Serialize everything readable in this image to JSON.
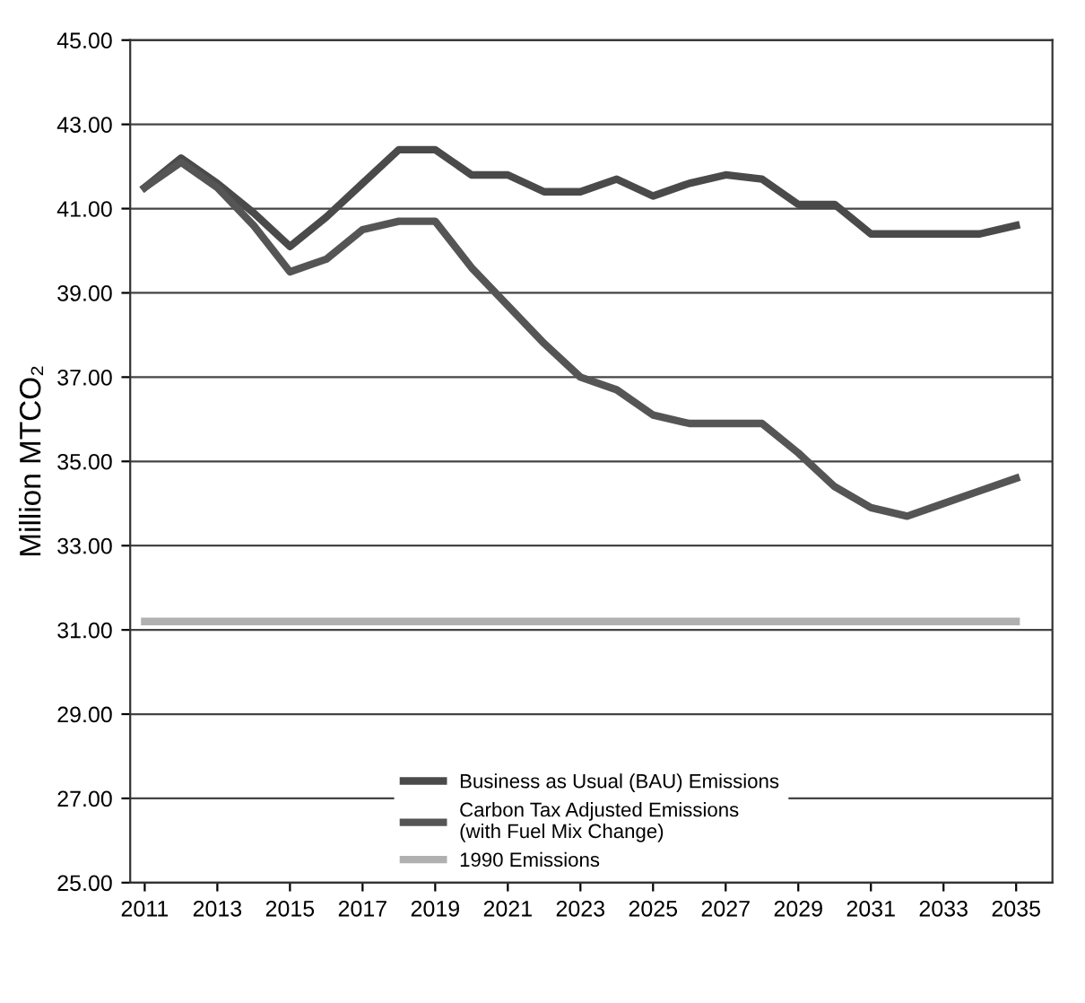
{
  "chart_data": {
    "type": "line",
    "ylabel": "Million MTCO₂",
    "x": [
      2011,
      2012,
      2013,
      2014,
      2015,
      2016,
      2017,
      2018,
      2019,
      2020,
      2021,
      2022,
      2023,
      2024,
      2025,
      2026,
      2027,
      2028,
      2029,
      2030,
      2031,
      2032,
      2033,
      2034,
      2035
    ],
    "series": [
      {
        "name": "Business as Usual (BAU) Emissions",
        "color": "#4a4a4a",
        "values": [
          41.5,
          42.2,
          41.6,
          40.9,
          40.1,
          40.8,
          41.6,
          42.4,
          42.4,
          41.8,
          41.8,
          41.4,
          41.4,
          41.7,
          41.3,
          41.6,
          41.8,
          41.7,
          41.1,
          41.1,
          40.4,
          40.4,
          40.4,
          40.4,
          40.6
        ]
      },
      {
        "name": "Carbon Tax Adjusted Emissions\n(with Fuel Mix Change)",
        "color": "#555555",
        "values": [
          41.5,
          42.1,
          41.5,
          40.6,
          39.5,
          39.8,
          40.5,
          40.7,
          40.7,
          39.6,
          38.7,
          37.8,
          37.0,
          36.7,
          36.1,
          35.9,
          35.9,
          35.9,
          35.2,
          34.4,
          33.9,
          33.7,
          34.0,
          34.3,
          34.6
        ]
      },
      {
        "name": "1990 Emissions",
        "color": "#b0b0b0",
        "values": [
          31.2,
          31.2,
          31.2,
          31.2,
          31.2,
          31.2,
          31.2,
          31.2,
          31.2,
          31.2,
          31.2,
          31.2,
          31.2,
          31.2,
          31.2,
          31.2,
          31.2,
          31.2,
          31.2,
          31.2,
          31.2,
          31.2,
          31.2,
          31.2,
          31.2
        ]
      }
    ],
    "xlim": [
      2010.6,
      2036
    ],
    "xticks": [
      2011,
      2013,
      2015,
      2017,
      2019,
      2021,
      2023,
      2025,
      2027,
      2029,
      2031,
      2033,
      2035
    ],
    "ylim": [
      25,
      45
    ],
    "yticks": [
      {
        "value": 25,
        "label": "25.00"
      },
      {
        "value": 27,
        "label": "27.00"
      },
      {
        "value": 29,
        "label": "29.00"
      },
      {
        "value": 31,
        "label": "31.00"
      },
      {
        "value": 33,
        "label": "33.00"
      },
      {
        "value": 35,
        "label": "35.00"
      },
      {
        "value": 37,
        "label": "37.00"
      },
      {
        "value": 39,
        "label": "39.00"
      },
      {
        "value": 41,
        "label": "41.00"
      },
      {
        "value": 43,
        "label": "43.00"
      },
      {
        "value": 45,
        "label": "45.00"
      }
    ],
    "grid": "y",
    "legend": "bottom",
    "line_style": "solid",
    "marker": "none"
  }
}
